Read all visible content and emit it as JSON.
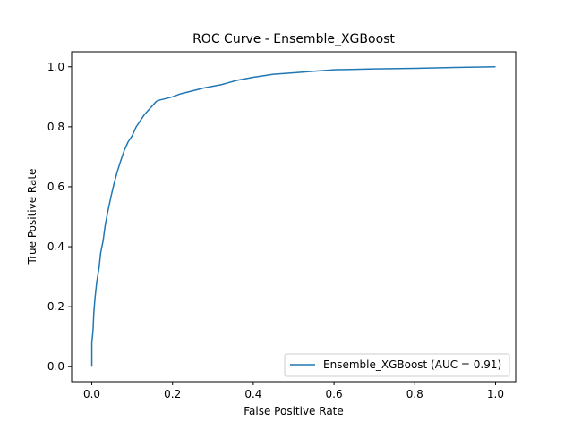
{
  "chart_data": {
    "type": "line",
    "title": "ROC Curve - Ensemble_XGBoost",
    "xlabel": "False Positive Rate",
    "ylabel": "True Positive Rate",
    "xlim": [
      -0.05,
      1.05
    ],
    "ylim": [
      -0.05,
      1.05
    ],
    "xticks": [
      0.0,
      0.2,
      0.4,
      0.6,
      0.8,
      1.0
    ],
    "yticks": [
      0.0,
      0.2,
      0.4,
      0.6,
      0.8,
      1.0
    ],
    "xtick_labels": [
      "0.0",
      "0.2",
      "0.4",
      "0.6",
      "0.8",
      "1.0"
    ],
    "ytick_labels": [
      "0.0",
      "0.2",
      "0.4",
      "0.6",
      "0.8",
      "1.0"
    ],
    "grid": false,
    "legend_position": "lower-right",
    "series": [
      {
        "name": "Ensemble_XGBoost (AUC = 0.91)",
        "color": "#1f77b4",
        "x": [
          0.0,
          0.0,
          0.003,
          0.005,
          0.008,
          0.012,
          0.018,
          0.022,
          0.028,
          0.033,
          0.04,
          0.048,
          0.055,
          0.063,
          0.07,
          0.08,
          0.09,
          0.1,
          0.11,
          0.12,
          0.13,
          0.14,
          0.15,
          0.16,
          0.17,
          0.18,
          0.2,
          0.22,
          0.25,
          0.28,
          0.32,
          0.36,
          0.4,
          0.45,
          0.5,
          0.55,
          0.6,
          0.7,
          0.8,
          0.9,
          1.0
        ],
        "y": [
          0.0,
          0.08,
          0.12,
          0.18,
          0.23,
          0.28,
          0.33,
          0.38,
          0.42,
          0.47,
          0.52,
          0.57,
          0.61,
          0.65,
          0.68,
          0.72,
          0.75,
          0.77,
          0.8,
          0.82,
          0.84,
          0.855,
          0.87,
          0.885,
          0.89,
          0.893,
          0.9,
          0.91,
          0.92,
          0.93,
          0.94,
          0.955,
          0.965,
          0.975,
          0.98,
          0.985,
          0.99,
          0.993,
          0.995,
          0.998,
          1.0
        ]
      }
    ]
  }
}
